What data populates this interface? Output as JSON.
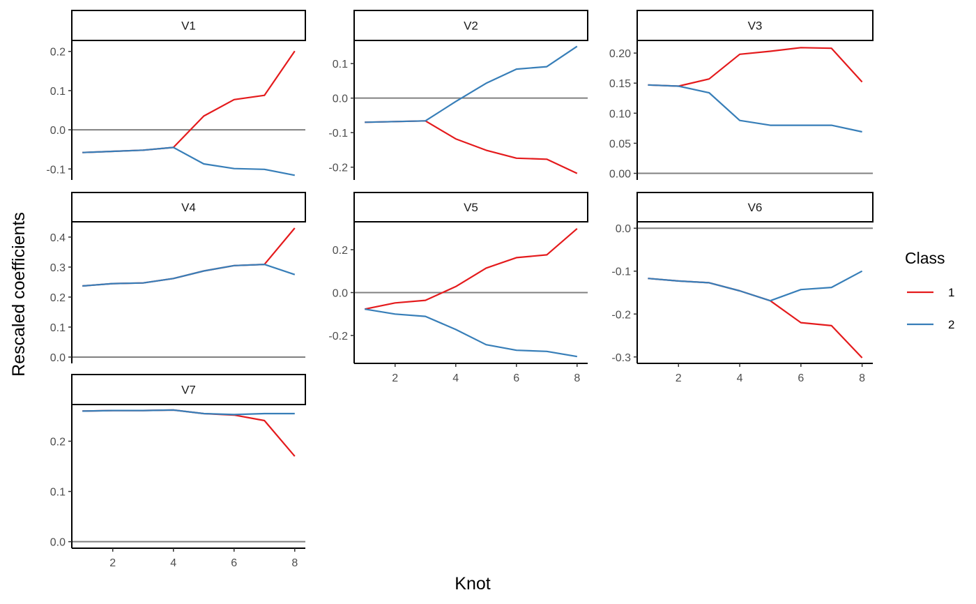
{
  "chart_data": {
    "type": "line",
    "xlabel": "Knot",
    "ylabel": "Rescaled coefficients",
    "legend": {
      "title": "Class",
      "position": "right"
    },
    "grid": false,
    "series_meta": [
      {
        "name": "1",
        "color": "#E41A1C"
      },
      {
        "name": "2",
        "color": "#377EB8"
      }
    ],
    "x": [
      1,
      2,
      3,
      4,
      5,
      6,
      7,
      8
    ],
    "x_ticks": [
      2,
      4,
      6,
      8
    ],
    "x_tick_labels": [
      "2",
      "4",
      "6",
      "8"
    ],
    "xlim": [
      0.65,
      8.35
    ],
    "panels": [
      {
        "label": "V1",
        "ylim": [
          -0.128,
          0.228
        ],
        "y_ticks": [
          -0.1,
          0.0,
          0.1,
          0.2
        ],
        "y_tick_labels": [
          "-0.1",
          "0.0",
          "0.1",
          "0.2"
        ],
        "series": [
          {
            "name": "1",
            "values": [
              -0.058,
              -0.055,
              -0.052,
              -0.045,
              0.035,
              0.077,
              0.088,
              0.201
            ]
          },
          {
            "name": "2",
            "values": [
              -0.058,
              -0.055,
              -0.052,
              -0.045,
              -0.087,
              -0.099,
              -0.101,
              -0.116
            ]
          }
        ]
      },
      {
        "label": "V2",
        "ylim": [
          -0.237,
          0.167
        ],
        "y_ticks": [
          -0.2,
          -0.1,
          0.0,
          0.1
        ],
        "y_tick_labels": [
          "-0.2",
          "-0.1",
          "0.0",
          "0.1"
        ],
        "series": [
          {
            "name": "1",
            "values": [
              -0.07,
              -0.068,
              -0.066,
              -0.118,
              -0.151,
              -0.174,
              -0.177,
              -0.218
            ]
          },
          {
            "name": "2",
            "values": [
              -0.07,
              -0.068,
              -0.066,
              -0.01,
              0.043,
              0.084,
              0.091,
              0.15
            ]
          }
        ]
      },
      {
        "label": "V3",
        "ylim": [
          -0.011,
          0.221
        ],
        "y_ticks": [
          0.0,
          0.05,
          0.1,
          0.15,
          0.2
        ],
        "y_tick_labels": [
          "0.00",
          "0.05",
          "0.10",
          "0.15",
          "0.20"
        ],
        "series": [
          {
            "name": "1",
            "values": [
              0.147,
              0.145,
              0.157,
              0.198,
              0.203,
              0.209,
              0.208,
              0.152
            ]
          },
          {
            "name": "2",
            "values": [
              0.147,
              0.145,
              0.134,
              0.088,
              0.08,
              0.08,
              0.08,
              0.069
            ]
          }
        ]
      },
      {
        "label": "V4",
        "ylim": [
          -0.021,
          0.451
        ],
        "y_ticks": [
          0.0,
          0.1,
          0.2,
          0.3,
          0.4
        ],
        "y_tick_labels": [
          "0.0",
          "0.1",
          "0.2",
          "0.3",
          "0.4"
        ],
        "series": [
          {
            "name": "1",
            "values": [
              0.237,
              0.245,
              0.247,
              0.262,
              0.287,
              0.305,
              0.309,
              0.43
            ]
          },
          {
            "name": "2",
            "values": [
              0.237,
              0.245,
              0.247,
              0.262,
              0.287,
              0.305,
              0.309,
              0.275
            ]
          }
        ]
      },
      {
        "label": "V5",
        "ylim": [
          -0.33,
          0.33
        ],
        "y_ticks": [
          -0.2,
          0.0,
          0.2
        ],
        "y_tick_labels": [
          "-0.2",
          "0.0",
          "0.2"
        ],
        "series": [
          {
            "name": "1",
            "values": [
              -0.077,
              -0.048,
              -0.036,
              0.028,
              0.114,
              0.163,
              0.176,
              0.298
            ]
          },
          {
            "name": "2",
            "values": [
              -0.077,
              -0.1,
              -0.111,
              -0.172,
              -0.243,
              -0.269,
              -0.274,
              -0.298
            ]
          }
        ]
      },
      {
        "label": "V6",
        "ylim": [
          -0.315,
          0.015
        ],
        "y_ticks": [
          -0.3,
          -0.2,
          -0.1,
          0.0
        ],
        "y_tick_labels": [
          "-0.3",
          "-0.2",
          "-0.1",
          "0.0"
        ],
        "series": [
          {
            "name": "1",
            "values": [
              -0.117,
              -0.123,
              -0.127,
              -0.146,
              -0.169,
              -0.22,
              -0.227,
              -0.302
            ]
          },
          {
            "name": "2",
            "values": [
              -0.117,
              -0.123,
              -0.127,
              -0.146,
              -0.169,
              -0.143,
              -0.138,
              -0.1
            ]
          }
        ]
      },
      {
        "label": "V7",
        "ylim": [
          -0.013,
          0.273
        ],
        "y_ticks": [
          0.0,
          0.1,
          0.2
        ],
        "y_tick_labels": [
          "0.0",
          "0.1",
          "0.2"
        ],
        "series": [
          {
            "name": "1",
            "values": [
              0.26,
              0.261,
              0.261,
              0.262,
              0.255,
              0.252,
              0.241,
              0.17
            ]
          },
          {
            "name": "2",
            "values": [
              0.26,
              0.261,
              0.261,
              0.262,
              0.255,
              0.253,
              0.255,
              0.255
            ]
          }
        ]
      }
    ]
  }
}
